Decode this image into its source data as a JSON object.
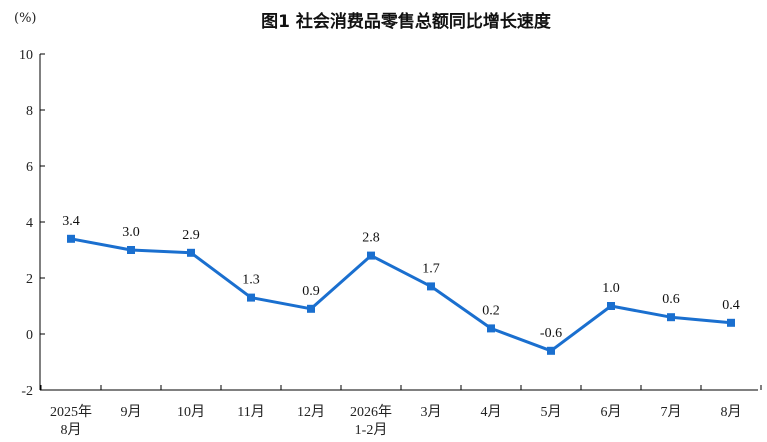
{
  "chart_data": {
    "type": "line",
    "title": "图1  社会消费品零售总额同比增长速度",
    "unit_label": "(%)",
    "ylim": [
      -2,
      10
    ],
    "yticks": [
      -2,
      0,
      2,
      4,
      6,
      8,
      10
    ],
    "categories": [
      [
        "2025年",
        "8月"
      ],
      [
        "9月"
      ],
      [
        "10月"
      ],
      [
        "11月"
      ],
      [
        "12月"
      ],
      [
        "2026年",
        "1-2月"
      ],
      [
        "3月"
      ],
      [
        "4月"
      ],
      [
        "5月"
      ],
      [
        "6月"
      ],
      [
        "7月"
      ],
      [
        "8月"
      ]
    ],
    "series": [
      {
        "values": [
          3.4,
          3.0,
          2.9,
          1.3,
          0.9,
          2.8,
          1.7,
          0.2,
          -0.6,
          1.0,
          0.6,
          0.4
        ],
        "labels": [
          "3.4",
          "3.0",
          "2.9",
          "1.3",
          "0.9",
          "2.8",
          "1.7",
          "0.2",
          "-0.6",
          "1.0",
          "0.6",
          "0.4"
        ],
        "color": "#1a6fcf"
      }
    ],
    "grid": false,
    "legend": "none"
  }
}
